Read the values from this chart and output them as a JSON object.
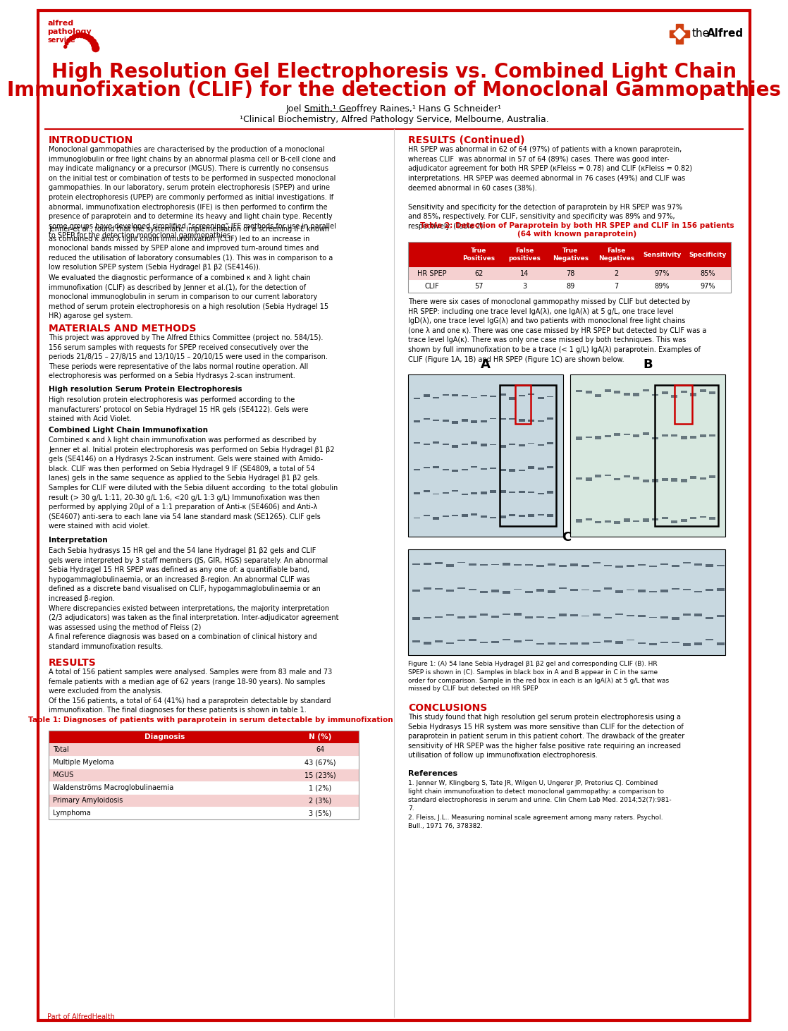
{
  "title_line1": "High Resolution Gel Electrophoresis vs. Combined Light Chain",
  "title_line2": "Immunofixation (CLIF) for the detection of Monoclonal Gammopathies",
  "authors": "Joel Smith,¹ Geoffrey Raines,¹ Hans G Schneider¹",
  "affiliation": "¹Clinical Biochemistry, Alfred Pathology Service, Melbourne, Australia.",
  "title_color": "#cc0000",
  "section_header_color": "#cc0000",
  "background_color": "#ffffff",
  "border_color": "#cc0000",
  "table1_title": "Table 1: Diagnoses of patients with paraprotein in serum detectable by immunofixation",
  "table1_headers": [
    "Diagnosis",
    "N (%)"
  ],
  "table1_data": [
    [
      "Total",
      "64"
    ],
    [
      "Multiple Myeloma",
      "43 (67%)"
    ],
    [
      "MGUS",
      "15 (23%)"
    ],
    [
      "Waldenströms Macroglobulinaemia",
      "1 (2%)"
    ],
    [
      "Primary Amyloidosis",
      "2 (3%)"
    ],
    [
      "Lymphoma",
      "3 (5%)"
    ]
  ],
  "table2_headers": [
    "",
    "True\nPositives",
    "False\npositives",
    "True\nNegatives",
    "False\nNegatives",
    "Sensitivity",
    "Specificity"
  ],
  "table2_data": [
    [
      "HR SPEP",
      "62",
      "14",
      "78",
      "2",
      "97%",
      "85%"
    ],
    [
      "CLIF",
      "57",
      "3",
      "89",
      "7",
      "89%",
      "97%"
    ]
  ]
}
